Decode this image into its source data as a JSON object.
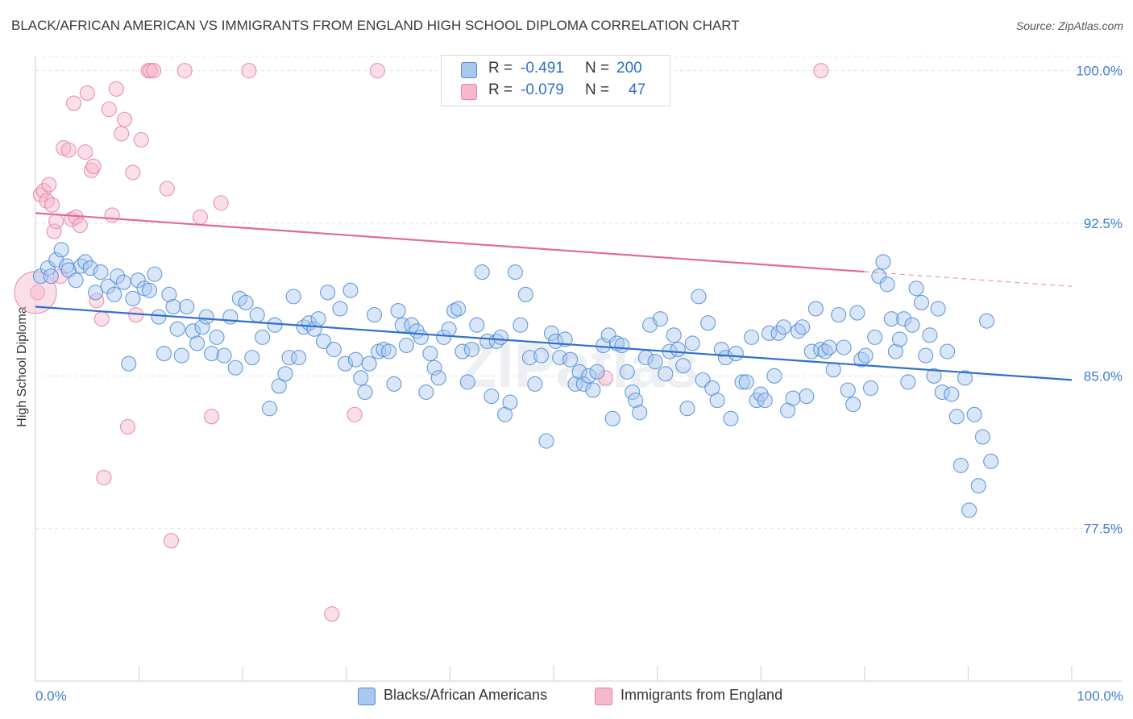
{
  "title": "BLACK/AFRICAN AMERICAN VS IMMIGRANTS FROM ENGLAND HIGH SCHOOL DIPLOMA CORRELATION CHART",
  "source": "Source: ZipAtlas.com",
  "watermark": "ZIPatlas",
  "legend": {
    "r_label": "R =",
    "n_label": "N =",
    "rows": [
      {
        "r": "-0.491",
        "n": "200"
      },
      {
        "r": "-0.079",
        "n": "47"
      }
    ]
  },
  "colors": {
    "blue_fill": "#a9c7ef",
    "blue_stroke": "#4f8ad6",
    "blue_line": "#2f6fcf",
    "pink_fill": "#f6b9cb",
    "pink_stroke": "#e67fa0",
    "pink_line": "#e26a93",
    "tick_text": "#3f7bd1"
  },
  "chart_data": {
    "type": "scatter",
    "title": "BLACK/AFRICAN AMERICAN VS IMMIGRANTS FROM ENGLAND HIGH SCHOOL DIPLOMA CORRELATION CHART",
    "xlabel": "",
    "ylabel": "High School Diploma",
    "x_tick_labels": [
      "0.0%",
      "100.0%"
    ],
    "y_tick_labels": [
      "100.0%",
      "92.5%",
      "85.0%",
      "77.5%"
    ],
    "y_ticks": [
      100.0,
      92.5,
      85.0,
      77.5
    ],
    "xlim": [
      0,
      100
    ],
    "ylim": [
      70.0,
      100.7
    ],
    "grid": true,
    "legend_position": "top-center",
    "series": [
      {
        "name": "Blacks/African Americans",
        "color": "#a9c7ef",
        "r": -0.491,
        "n": 200,
        "trend": {
          "x": [
            0,
            100
          ],
          "y": [
            88.4,
            84.8
          ]
        },
        "points": [
          [
            0.5,
            89.9
          ],
          [
            1.2,
            90.3
          ],
          [
            1.5,
            89.9
          ],
          [
            2.0,
            90.7
          ],
          [
            2.5,
            91.2
          ],
          [
            3.0,
            90.4
          ],
          [
            3.2,
            90.2
          ],
          [
            3.9,
            89.7
          ],
          [
            4.4,
            90.4
          ],
          [
            4.8,
            90.6
          ],
          [
            5.3,
            90.3
          ],
          [
            5.8,
            89.1
          ],
          [
            6.3,
            90.1
          ],
          [
            7.0,
            89.4
          ],
          [
            7.6,
            89.0
          ],
          [
            7.9,
            89.9
          ],
          [
            8.5,
            89.6
          ],
          [
            9.0,
            85.6
          ],
          [
            9.4,
            88.8
          ],
          [
            9.9,
            89.7
          ],
          [
            10.5,
            89.3
          ],
          [
            11.0,
            89.2
          ],
          [
            11.5,
            90.0
          ],
          [
            11.9,
            87.9
          ],
          [
            12.4,
            86.1
          ],
          [
            12.9,
            89.0
          ],
          [
            13.3,
            88.4
          ],
          [
            13.7,
            87.3
          ],
          [
            14.1,
            86.0
          ],
          [
            14.6,
            88.4
          ],
          [
            15.2,
            87.2
          ],
          [
            15.6,
            86.6
          ],
          [
            16.1,
            87.4
          ],
          [
            16.5,
            87.9
          ],
          [
            17.0,
            86.1
          ],
          [
            17.5,
            86.9
          ],
          [
            18.2,
            86.0
          ],
          [
            18.8,
            87.9
          ],
          [
            19.3,
            85.4
          ],
          [
            19.7,
            88.8
          ],
          [
            20.3,
            88.6
          ],
          [
            20.9,
            85.9
          ],
          [
            21.4,
            88.0
          ],
          [
            21.9,
            86.9
          ],
          [
            22.6,
            83.4
          ],
          [
            23.1,
            87.5
          ],
          [
            23.5,
            84.5
          ],
          [
            24.1,
            85.1
          ],
          [
            24.5,
            85.9
          ],
          [
            24.9,
            88.9
          ],
          [
            25.4,
            85.9
          ],
          [
            25.9,
            87.4
          ],
          [
            26.4,
            87.6
          ],
          [
            26.9,
            87.3
          ],
          [
            27.3,
            87.8
          ],
          [
            27.8,
            86.7
          ],
          [
            28.2,
            89.1
          ],
          [
            28.8,
            86.3
          ],
          [
            29.4,
            88.3
          ],
          [
            29.9,
            85.6
          ],
          [
            30.4,
            89.2
          ],
          [
            30.9,
            85.8
          ],
          [
            31.4,
            84.9
          ],
          [
            31.8,
            84.2
          ],
          [
            32.2,
            85.6
          ],
          [
            32.7,
            88.0
          ],
          [
            33.1,
            86.2
          ],
          [
            33.6,
            86.3
          ],
          [
            34.1,
            86.2
          ],
          [
            34.6,
            84.6
          ],
          [
            35.0,
            88.2
          ],
          [
            35.4,
            87.5
          ],
          [
            35.8,
            86.5
          ],
          [
            36.3,
            87.5
          ],
          [
            36.8,
            87.2
          ],
          [
            37.2,
            86.9
          ],
          [
            37.7,
            84.2
          ],
          [
            38.1,
            86.1
          ],
          [
            38.5,
            85.4
          ],
          [
            38.9,
            84.9
          ],
          [
            39.4,
            86.9
          ],
          [
            39.9,
            87.3
          ],
          [
            40.4,
            88.2
          ],
          [
            40.8,
            88.3
          ],
          [
            41.2,
            86.2
          ],
          [
            41.7,
            84.7
          ],
          [
            42.1,
            86.3
          ],
          [
            42.6,
            87.5
          ],
          [
            43.1,
            90.1
          ],
          [
            43.6,
            86.7
          ],
          [
            44.0,
            84.0
          ],
          [
            44.5,
            86.7
          ],
          [
            44.9,
            86.9
          ],
          [
            45.3,
            83.1
          ],
          [
            45.8,
            83.7
          ],
          [
            46.3,
            90.1
          ],
          [
            46.8,
            87.5
          ],
          [
            47.3,
            89.0
          ],
          [
            47.7,
            85.9
          ],
          [
            48.2,
            84.6
          ],
          [
            48.8,
            86.0
          ],
          [
            49.3,
            81.8
          ],
          [
            49.8,
            87.1
          ],
          [
            50.2,
            86.7
          ],
          [
            50.6,
            85.9
          ],
          [
            51.1,
            86.8
          ],
          [
            51.6,
            85.8
          ],
          [
            52.1,
            84.6
          ],
          [
            52.5,
            85.2
          ],
          [
            52.9,
            84.6
          ],
          [
            53.4,
            85.0
          ],
          [
            53.8,
            84.3
          ],
          [
            54.2,
            85.2
          ],
          [
            54.8,
            86.5
          ],
          [
            55.3,
            87.0
          ],
          [
            55.7,
            82.9
          ],
          [
            56.1,
            86.6
          ],
          [
            56.6,
            86.5
          ],
          [
            57.1,
            85.2
          ],
          [
            57.6,
            84.2
          ],
          [
            57.9,
            83.8
          ],
          [
            58.3,
            83.2
          ],
          [
            58.9,
            85.9
          ],
          [
            59.3,
            87.5
          ],
          [
            59.8,
            85.7
          ],
          [
            60.3,
            87.8
          ],
          [
            60.8,
            85.1
          ],
          [
            61.2,
            86.2
          ],
          [
            61.6,
            87.0
          ],
          [
            62.0,
            86.3
          ],
          [
            62.5,
            85.5
          ],
          [
            62.9,
            83.4
          ],
          [
            63.4,
            86.6
          ],
          [
            64.0,
            88.9
          ],
          [
            64.4,
            84.8
          ],
          [
            64.9,
            87.6
          ],
          [
            65.3,
            84.4
          ],
          [
            65.8,
            83.8
          ],
          [
            66.2,
            86.3
          ],
          [
            66.6,
            85.9
          ],
          [
            67.1,
            82.9
          ],
          [
            67.6,
            86.1
          ],
          [
            68.2,
            84.7
          ],
          [
            68.6,
            84.7
          ],
          [
            69.1,
            86.9
          ],
          [
            69.6,
            83.8
          ],
          [
            70.0,
            84.1
          ],
          [
            70.4,
            83.8
          ],
          [
            70.8,
            87.1
          ],
          [
            71.3,
            85.0
          ],
          [
            71.7,
            87.1
          ],
          [
            72.2,
            87.4
          ],
          [
            72.6,
            83.3
          ],
          [
            73.1,
            83.9
          ],
          [
            73.6,
            87.2
          ],
          [
            74.0,
            87.4
          ],
          [
            74.4,
            84.0
          ],
          [
            74.9,
            86.2
          ],
          [
            75.3,
            88.3
          ],
          [
            75.8,
            86.3
          ],
          [
            76.2,
            86.2
          ],
          [
            76.6,
            86.4
          ],
          [
            77.0,
            85.3
          ],
          [
            77.5,
            88.0
          ],
          [
            78.0,
            86.4
          ],
          [
            78.4,
            84.3
          ],
          [
            78.9,
            83.6
          ],
          [
            79.3,
            88.1
          ],
          [
            79.7,
            85.8
          ],
          [
            80.1,
            86.0
          ],
          [
            80.6,
            84.4
          ],
          [
            81.0,
            86.9
          ],
          [
            81.4,
            89.9
          ],
          [
            81.8,
            90.6
          ],
          [
            82.2,
            89.5
          ],
          [
            82.6,
            87.8
          ],
          [
            83.0,
            86.2
          ],
          [
            83.4,
            86.8
          ],
          [
            83.8,
            87.8
          ],
          [
            84.2,
            84.7
          ],
          [
            84.6,
            87.5
          ],
          [
            85.0,
            89.3
          ],
          [
            85.5,
            88.6
          ],
          [
            85.9,
            86.0
          ],
          [
            86.3,
            87.0
          ],
          [
            86.7,
            85.0
          ],
          [
            87.1,
            88.3
          ],
          [
            87.5,
            84.2
          ],
          [
            88.0,
            86.2
          ],
          [
            88.4,
            84.1
          ],
          [
            88.9,
            83.0
          ],
          [
            89.3,
            80.6
          ],
          [
            89.7,
            84.9
          ],
          [
            90.1,
            78.4
          ],
          [
            90.6,
            83.1
          ],
          [
            91.0,
            79.6
          ],
          [
            91.4,
            82.0
          ],
          [
            91.8,
            87.7
          ],
          [
            92.2,
            80.8
          ]
        ]
      },
      {
        "name": "Immigrants from England",
        "color": "#f6b9cb",
        "r": -0.079,
        "n": 47,
        "trend": {
          "x": [
            0,
            100
          ],
          "y": [
            93.0,
            89.4
          ]
        },
        "trend_solid_until_x": 80,
        "points": [
          [
            0.2,
            89.1
          ],
          [
            0.5,
            93.9
          ],
          [
            0.8,
            94.1
          ],
          [
            1.1,
            93.6
          ],
          [
            1.3,
            94.4
          ],
          [
            1.6,
            93.4
          ],
          [
            1.8,
            92.1
          ],
          [
            2.0,
            92.6
          ],
          [
            2.4,
            89.9
          ],
          [
            2.7,
            96.2
          ],
          [
            3.2,
            96.1
          ],
          [
            3.5,
            92.7
          ],
          [
            3.9,
            92.8
          ],
          [
            3.7,
            98.4
          ],
          [
            4.3,
            92.4
          ],
          [
            4.8,
            96.0
          ],
          [
            5.0,
            98.9
          ],
          [
            5.4,
            95.1
          ],
          [
            5.6,
            95.3
          ],
          [
            5.9,
            88.7
          ],
          [
            6.4,
            87.8
          ],
          [
            6.6,
            80.0
          ],
          [
            7.1,
            98.1
          ],
          [
            7.4,
            92.9
          ],
          [
            7.8,
            99.1
          ],
          [
            8.3,
            96.9
          ],
          [
            8.6,
            97.6
          ],
          [
            8.9,
            82.5
          ],
          [
            9.4,
            95.0
          ],
          [
            9.7,
            88.0
          ],
          [
            10.2,
            96.6
          ],
          [
            10.9,
            100.0
          ],
          [
            11.1,
            100.0
          ],
          [
            11.4,
            100.0
          ],
          [
            12.7,
            94.2
          ],
          [
            13.1,
            76.9
          ],
          [
            14.4,
            100.0
          ],
          [
            15.9,
            92.8
          ],
          [
            17.0,
            83.0
          ],
          [
            17.9,
            93.5
          ],
          [
            20.6,
            100.0
          ],
          [
            28.6,
            73.3
          ],
          [
            30.8,
            83.1
          ],
          [
            33.0,
            100.0
          ],
          [
            55.0,
            84.9
          ],
          [
            75.8,
            100.0
          ],
          [
            0.0,
            89.1
          ]
        ]
      }
    ]
  },
  "bottom_legend": [
    "Blacks/African Americans",
    "Immigrants from England"
  ]
}
